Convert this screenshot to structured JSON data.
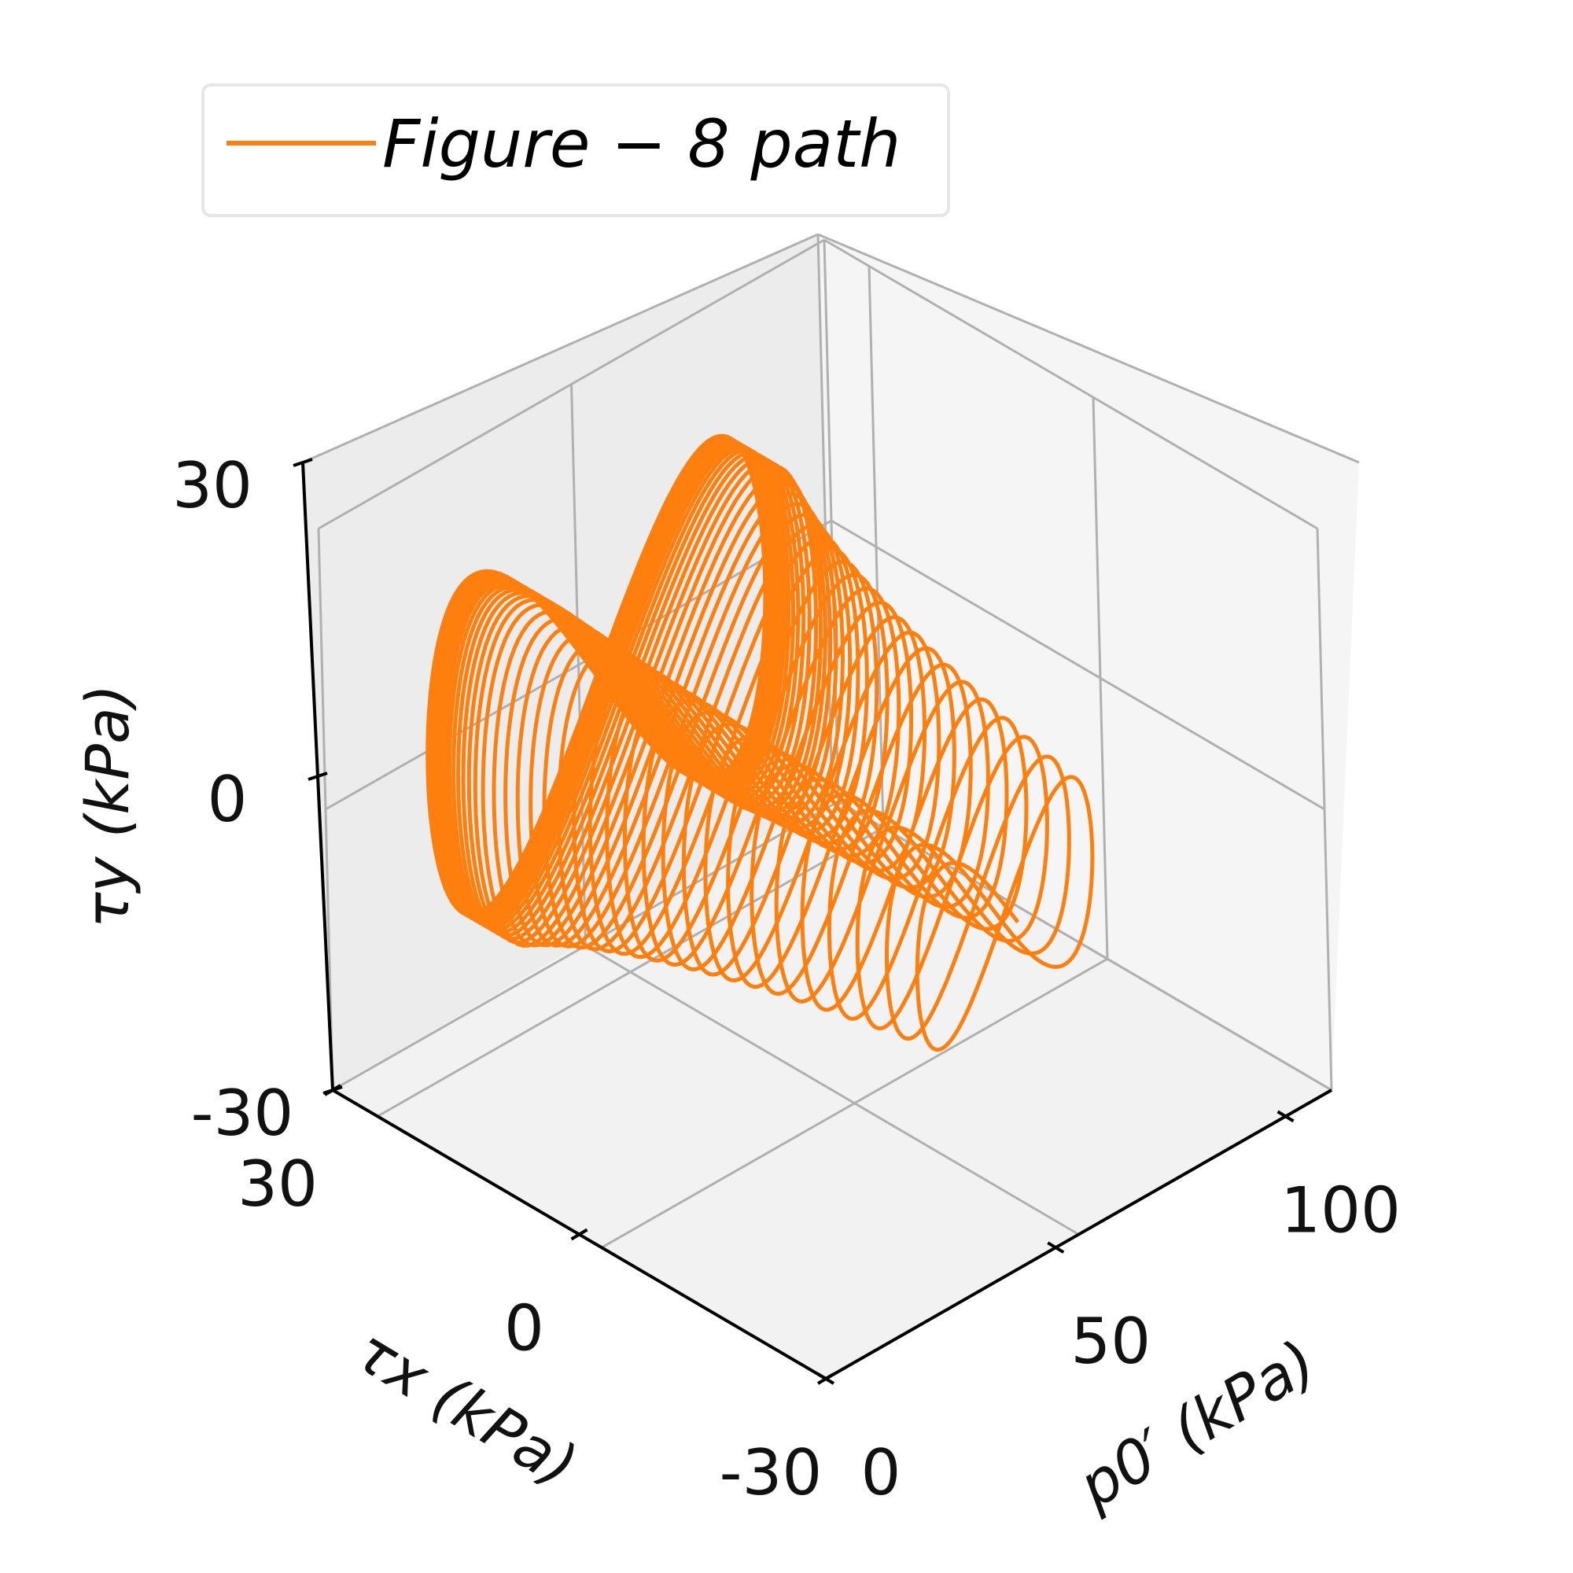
{
  "chart_data": {
    "type": "line",
    "projection": "3d",
    "legend": {
      "entries": [
        "Figure − 8 path"
      ],
      "placement": "top-left"
    },
    "axes": {
      "x": {
        "label": "τx (kPa)",
        "ticks": [
          "-30",
          "0",
          "30"
        ],
        "range": [
          -30,
          30
        ]
      },
      "y": {
        "label": "p0′ (kPa)",
        "ticks": [
          "0",
          "50",
          "100"
        ],
        "range": [
          0,
          110
        ]
      },
      "z": {
        "label": "τy (kPa)",
        "ticks": [
          "-30",
          "0",
          "30"
        ],
        "range": [
          -30,
          30
        ]
      }
    },
    "grid": true,
    "series": [
      {
        "name": "Figure − 8 path",
        "color": "#ff7f0e",
        "shape": "figure-eight in the τx–τy plane, drifting along p0′",
        "loops": 45,
        "p_range": [
          12,
          106
        ],
        "tau_x_amplitude": 20,
        "tau_y_amplitude": 18
      }
    ]
  }
}
